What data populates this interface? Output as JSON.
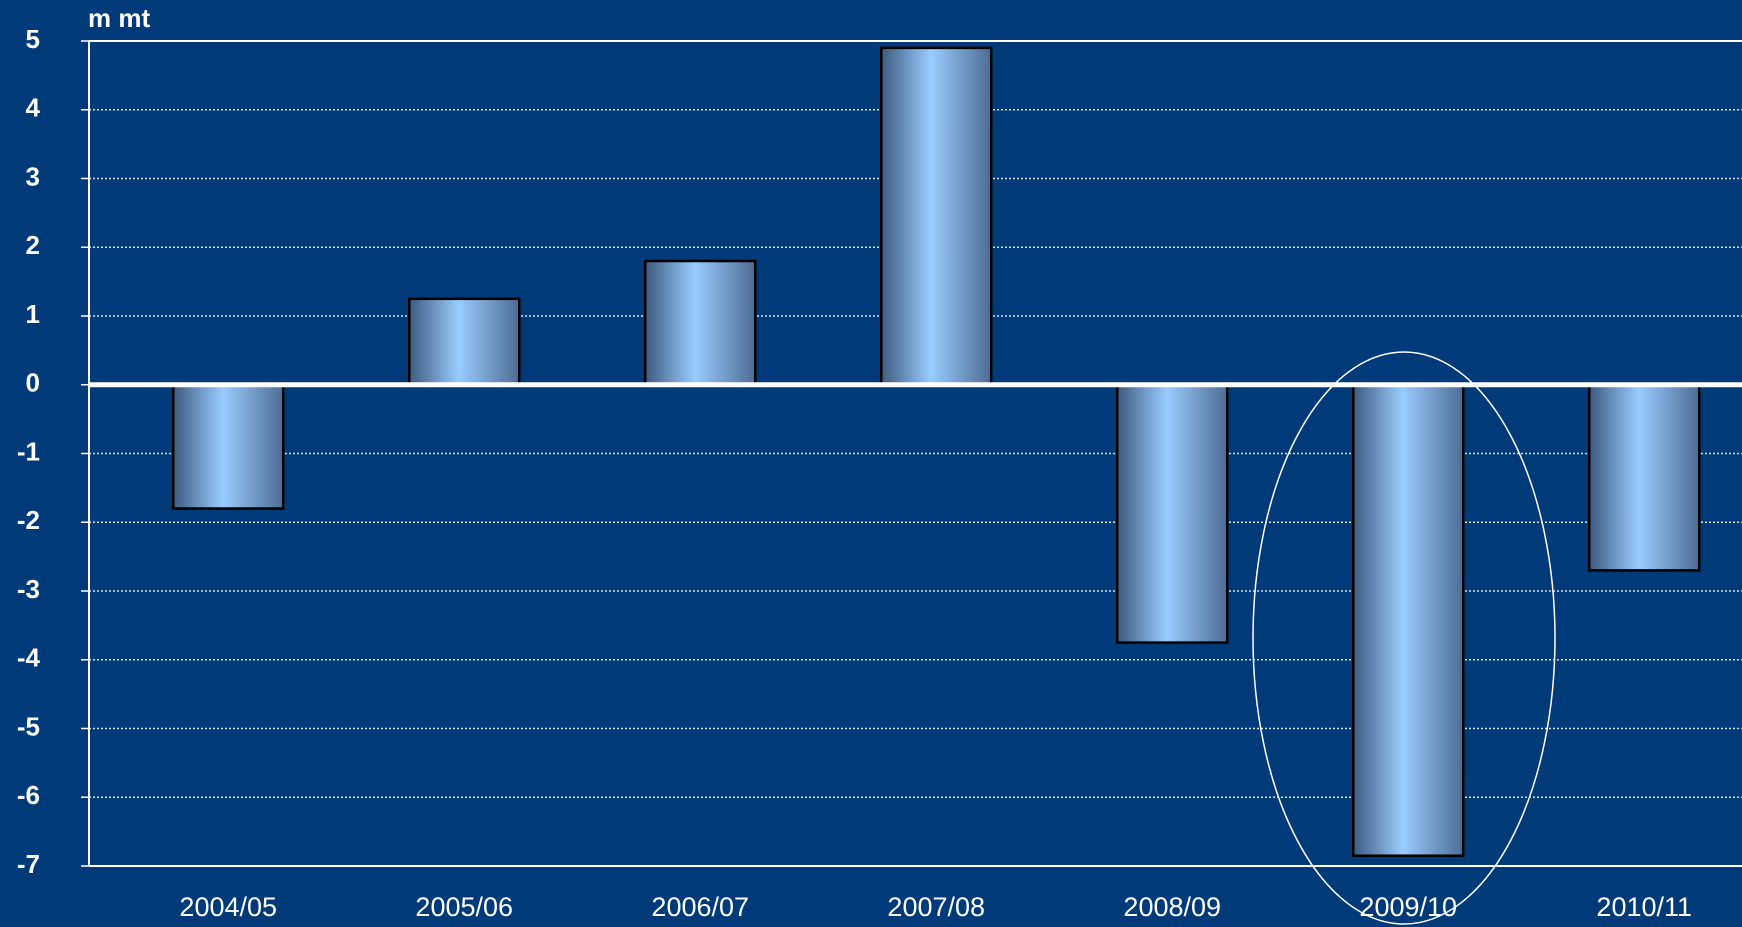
{
  "chart_data": {
    "type": "bar",
    "y_label": "m mt",
    "categories": [
      "2004/05",
      "2005/06",
      "2006/07",
      "2007/08",
      "2008/09",
      "2009/10",
      "2010/11"
    ],
    "values": [
      -1.8,
      1.25,
      1.8,
      4.9,
      -3.75,
      -6.85,
      -2.7
    ],
    "color": "#99ccff",
    "ylim": [
      -7,
      5
    ],
    "yticks": [
      -7,
      -6,
      -5,
      -4,
      -3,
      -2,
      -1,
      0,
      1,
      2,
      3,
      4,
      5
    ],
    "grid": true
  }
}
